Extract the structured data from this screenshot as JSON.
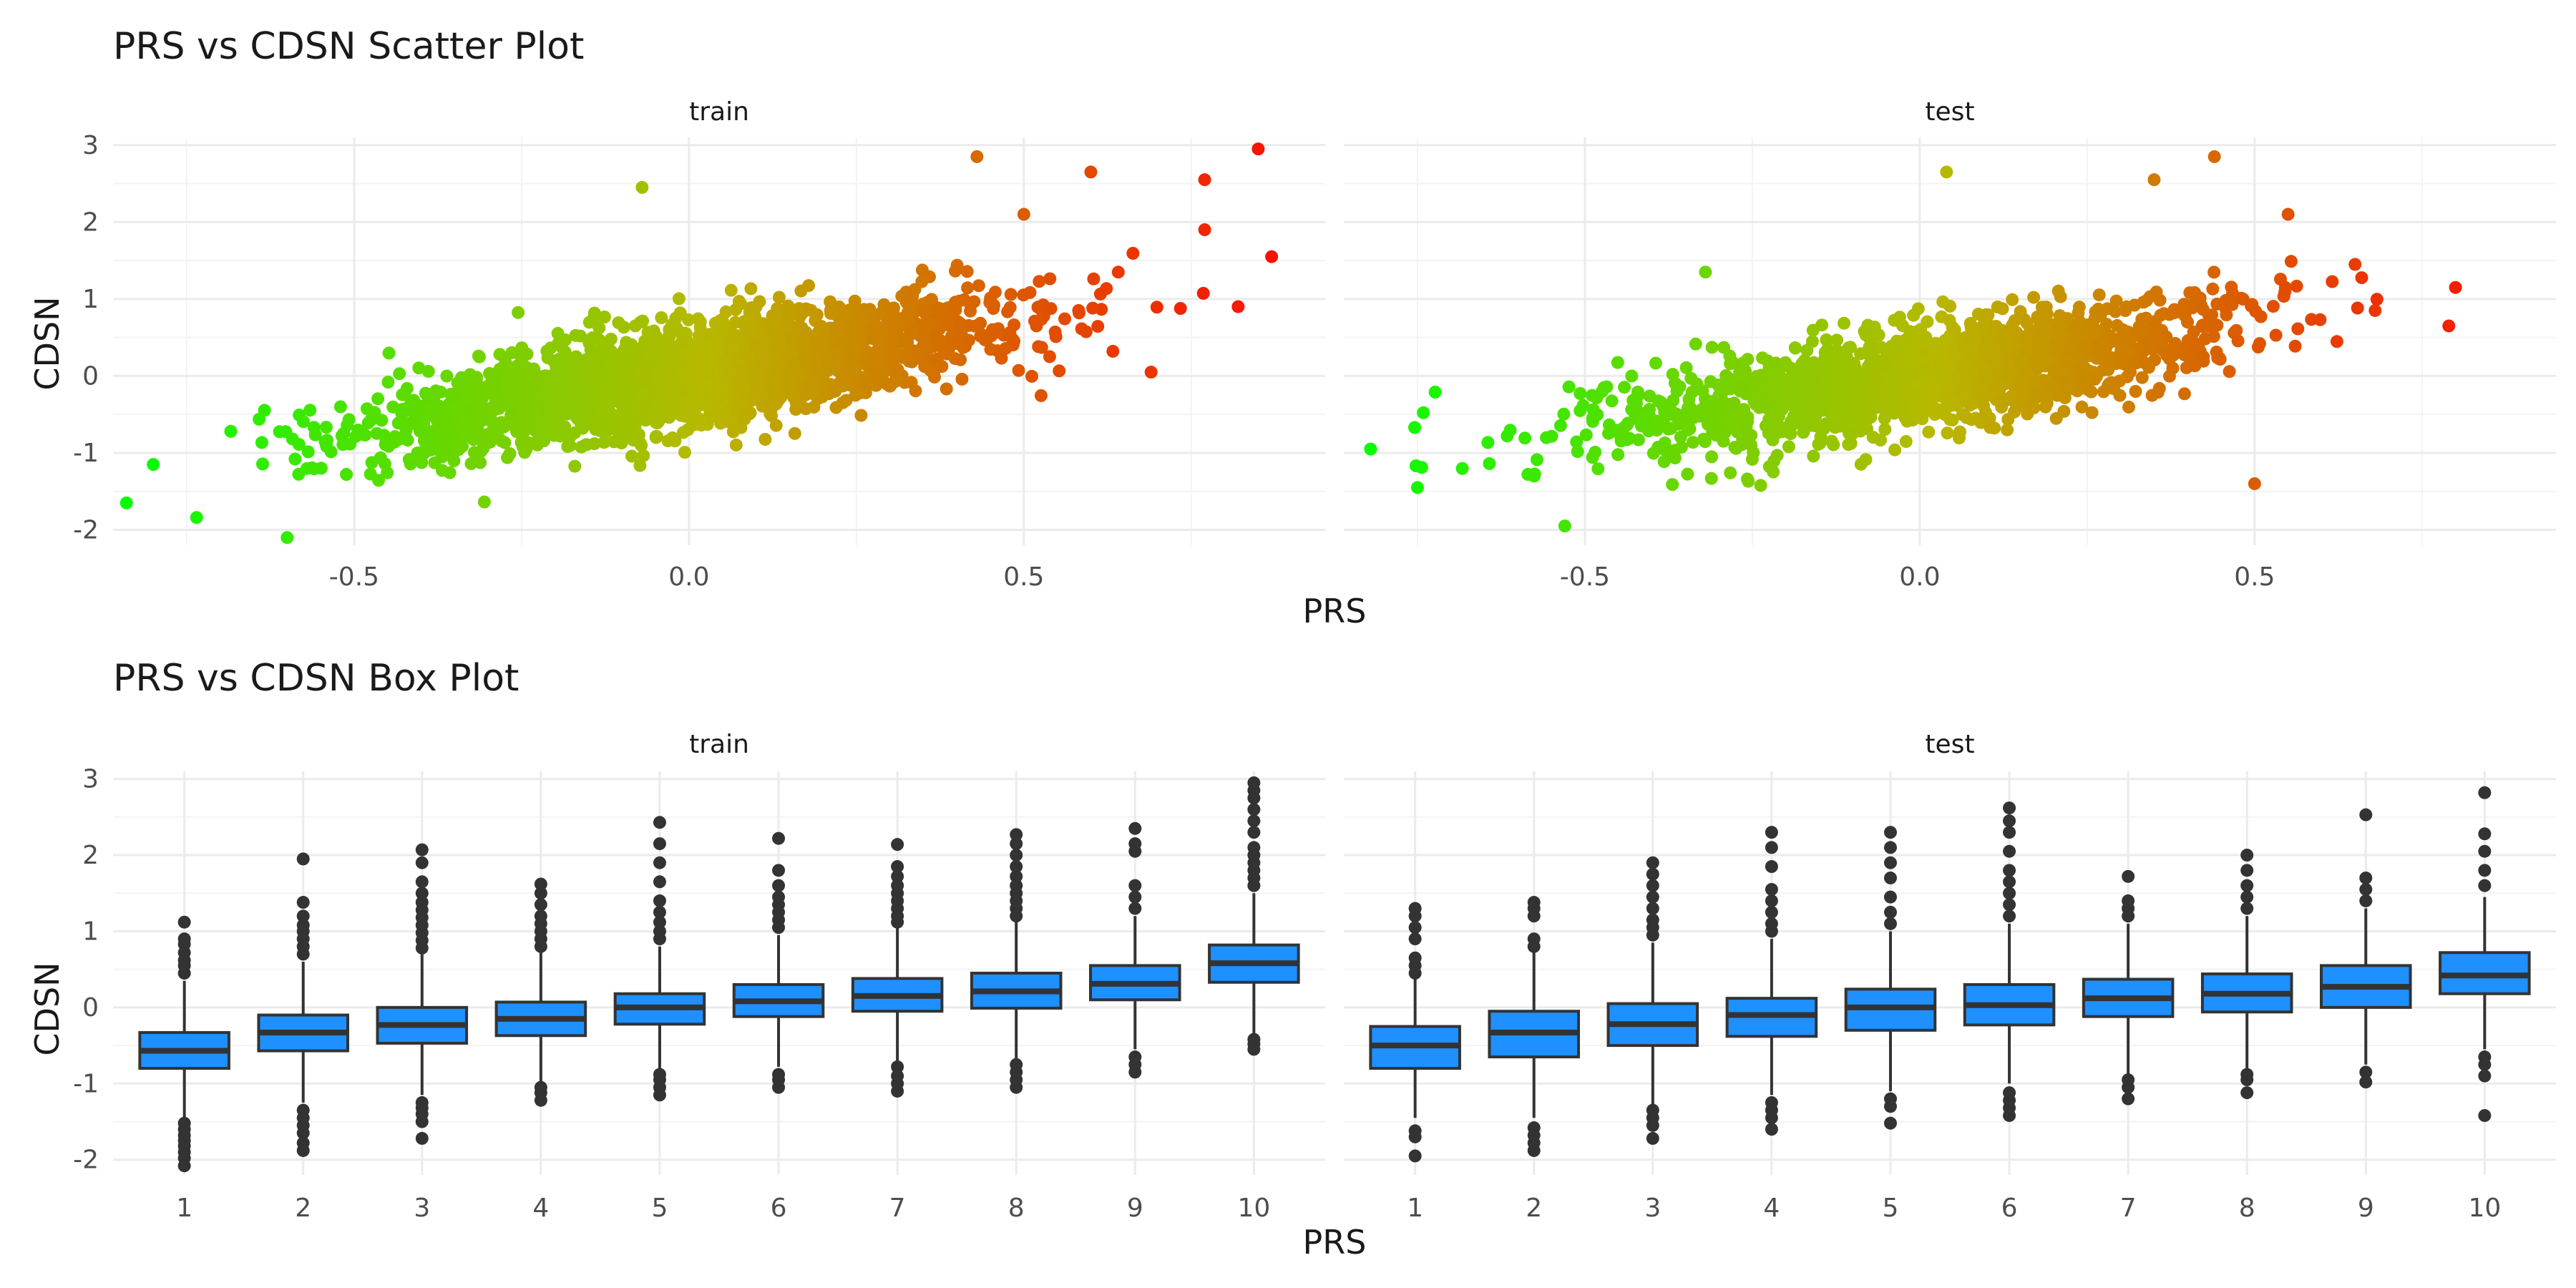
{
  "chart_data": [
    {
      "type": "scatter",
      "title": "PRS vs CDSN Scatter Plot",
      "xlabel": "PRS",
      "ylabel": "CDSN",
      "panels": [
        "train",
        "test"
      ],
      "x_ticks": [
        "-0.5",
        "0.0",
        "0.5"
      ],
      "x_tick_values": [
        -0.5,
        0.0,
        0.5
      ],
      "y_ticks": [
        "-2",
        "-1",
        "0",
        "1",
        "2",
        "3"
      ],
      "y_tick_values": [
        -2,
        -1,
        0,
        1,
        2,
        3
      ],
      "xlim": [
        -0.86,
        0.95
      ],
      "ylim": [
        -2.2,
        3.1
      ],
      "color_gradient": {
        "low": "#00ff00",
        "mid": "#b8b800",
        "high": "#ff0000"
      },
      "series": [
        {
          "name": "train",
          "trend": {
            "intercept": 0.0,
            "slope": 1.45
          },
          "x_range": [
            -0.84,
            0.87
          ],
          "n_points": 2600,
          "outliers": [
            {
              "x": -0.84,
              "y": -1.65
            },
            {
              "x": -0.8,
              "y": -1.15
            },
            {
              "x": -0.6,
              "y": -2.1
            },
            {
              "x": -0.07,
              "y": 2.45
            },
            {
              "x": 0.43,
              "y": 2.85
            },
            {
              "x": 0.5,
              "y": 2.1
            },
            {
              "x": 0.6,
              "y": 2.65
            },
            {
              "x": 0.69,
              "y": 0.05
            },
            {
              "x": 0.77,
              "y": 2.55
            },
            {
              "x": 0.77,
              "y": 1.9
            },
            {
              "x": 0.82,
              "y": 0.9
            },
            {
              "x": 0.85,
              "y": 2.95
            },
            {
              "x": 0.87,
              "y": 1.55
            }
          ]
        },
        {
          "name": "test",
          "trend": {
            "intercept": 0.0,
            "slope": 1.35
          },
          "x_range": [
            -0.82,
            0.8
          ],
          "n_points": 1700,
          "outliers": [
            {
              "x": -0.82,
              "y": -0.95
            },
            {
              "x": -0.75,
              "y": -1.45
            },
            {
              "x": -0.53,
              "y": -1.95
            },
            {
              "x": -0.32,
              "y": 1.35
            },
            {
              "x": 0.04,
              "y": 2.65
            },
            {
              "x": 0.35,
              "y": 2.55
            },
            {
              "x": 0.44,
              "y": 2.85
            },
            {
              "x": 0.5,
              "y": -1.4
            },
            {
              "x": 0.55,
              "y": 2.1
            },
            {
              "x": 0.65,
              "y": 1.45
            },
            {
              "x": 0.68,
              "y": 0.85
            },
            {
              "x": 0.79,
              "y": 0.65
            },
            {
              "x": 0.8,
              "y": 1.15
            }
          ]
        }
      ]
    },
    {
      "type": "box",
      "title": "PRS vs CDSN Box Plot",
      "xlabel": "PRS",
      "ylabel": "CDSN",
      "panels": [
        "train",
        "test"
      ],
      "categories": [
        "1",
        "2",
        "3",
        "4",
        "5",
        "6",
        "7",
        "8",
        "9",
        "10"
      ],
      "y_ticks": [
        "-2",
        "-1",
        "0",
        "1",
        "2",
        "3"
      ],
      "y_tick_values": [
        -2,
        -1,
        0,
        1,
        2,
        3
      ],
      "ylim": [
        -2.2,
        3.1
      ],
      "box_color": "#1e90ff",
      "outline_color": "#333333",
      "series": [
        {
          "name": "train",
          "boxes": [
            {
              "q1": -0.8,
              "median": -0.57,
              "q3": -0.33,
              "lower": -1.45,
              "upper": 0.35,
              "outliers": [
                -2.08,
                -1.98,
                -1.9,
                -1.82,
                -1.75,
                -1.68,
                -1.6,
                -1.52,
                0.45,
                0.55,
                0.62,
                0.72,
                0.83,
                0.9,
                1.12
              ]
            },
            {
              "q1": -0.57,
              "median": -0.33,
              "q3": -0.1,
              "lower": -1.25,
              "upper": 0.6,
              "outliers": [
                -1.88,
                -1.78,
                -1.65,
                -1.55,
                -1.45,
                -1.35,
                0.7,
                0.8,
                0.9,
                1.0,
                1.08,
                1.2,
                1.38,
                1.95
              ]
            },
            {
              "q1": -0.47,
              "median": -0.23,
              "q3": 0.0,
              "lower": -1.15,
              "upper": 0.7,
              "outliers": [
                -1.72,
                -1.5,
                -1.4,
                -1.32,
                -1.25,
                0.78,
                0.88,
                0.98,
                1.08,
                1.18,
                1.28,
                1.38,
                1.5,
                1.65,
                1.9,
                2.07
              ]
            },
            {
              "q1": -0.37,
              "median": -0.15,
              "q3": 0.07,
              "lower": -1.0,
              "upper": 0.72,
              "outliers": [
                -1.22,
                -1.12,
                -1.05,
                0.8,
                0.9,
                1.0,
                1.1,
                1.2,
                1.35,
                1.5,
                1.62
              ]
            },
            {
              "q1": -0.22,
              "median": 0.0,
              "q3": 0.18,
              "lower": -0.82,
              "upper": 0.8,
              "outliers": [
                -1.15,
                -1.05,
                -0.95,
                -0.88,
                0.9,
                1.0,
                1.12,
                1.25,
                1.4,
                1.65,
                1.9,
                2.15,
                2.43
              ]
            },
            {
              "q1": -0.12,
              "median": 0.08,
              "q3": 0.3,
              "lower": -0.78,
              "upper": 0.95,
              "outliers": [
                -1.05,
                -0.95,
                -0.88,
                1.05,
                1.15,
                1.25,
                1.35,
                1.45,
                1.6,
                1.8,
                2.22
              ]
            },
            {
              "q1": -0.05,
              "median": 0.15,
              "q3": 0.38,
              "lower": -0.7,
              "upper": 1.05,
              "outliers": [
                -1.1,
                -1.0,
                -0.9,
                -0.78,
                1.12,
                1.2,
                1.3,
                1.4,
                1.5,
                1.6,
                1.72,
                1.85,
                2.14
              ]
            },
            {
              "q1": -0.01,
              "median": 0.21,
              "q3": 0.45,
              "lower": -0.68,
              "upper": 1.12,
              "outliers": [
                -1.05,
                -0.95,
                -0.85,
                -0.75,
                1.2,
                1.3,
                1.4,
                1.5,
                1.6,
                1.72,
                1.85,
                2.0,
                2.15,
                2.27
              ]
            },
            {
              "q1": 0.1,
              "median": 0.31,
              "q3": 0.55,
              "lower": -0.55,
              "upper": 1.2,
              "outliers": [
                -0.85,
                -0.75,
                -0.65,
                1.3,
                1.45,
                1.6,
                2.05,
                2.15,
                2.35
              ]
            },
            {
              "q1": 0.33,
              "median": 0.58,
              "q3": 0.82,
              "lower": -0.35,
              "upper": 1.5,
              "outliers": [
                -0.55,
                -0.48,
                -0.42,
                1.6,
                1.7,
                1.8,
                1.9,
                2.0,
                2.1,
                2.3,
                2.45,
                2.6,
                2.75,
                2.85,
                2.95
              ]
            }
          ]
        },
        {
          "name": "test",
          "boxes": [
            {
              "q1": -0.8,
              "median": -0.5,
              "q3": -0.25,
              "lower": -1.45,
              "upper": 0.38,
              "outliers": [
                -1.95,
                -1.7,
                -1.62,
                0.45,
                0.55,
                0.65,
                0.9,
                1.05,
                1.2,
                1.3
              ]
            },
            {
              "q1": -0.65,
              "median": -0.33,
              "q3": -0.05,
              "lower": -1.45,
              "upper": 0.72,
              "outliers": [
                -1.88,
                -1.78,
                -1.68,
                -1.58,
                0.8,
                0.9,
                1.2,
                1.3,
                1.38
              ]
            },
            {
              "q1": -0.5,
              "median": -0.22,
              "q3": 0.05,
              "lower": -1.3,
              "upper": 0.85,
              "outliers": [
                -1.72,
                -1.55,
                -1.45,
                -1.35,
                0.95,
                1.05,
                1.15,
                1.3,
                1.45,
                1.6,
                1.75,
                1.9
              ]
            },
            {
              "q1": -0.38,
              "median": -0.1,
              "q3": 0.12,
              "lower": -1.15,
              "upper": 0.9,
              "outliers": [
                -1.6,
                -1.45,
                -1.35,
                -1.25,
                1.0,
                1.1,
                1.25,
                1.4,
                1.55,
                1.85,
                2.1,
                2.3
              ]
            },
            {
              "q1": -0.3,
              "median": 0.0,
              "q3": 0.24,
              "lower": -1.1,
              "upper": 1.0,
              "outliers": [
                -1.52,
                -1.3,
                -1.2,
                1.1,
                1.25,
                1.45,
                1.7,
                1.9,
                2.1,
                2.3
              ]
            },
            {
              "q1": -0.23,
              "median": 0.03,
              "q3": 0.3,
              "lower": -1.0,
              "upper": 1.1,
              "outliers": [
                -1.42,
                -1.32,
                -1.22,
                -1.12,
                1.2,
                1.35,
                1.5,
                1.65,
                1.8,
                2.05,
                2.3,
                2.45,
                2.62
              ]
            },
            {
              "q1": -0.12,
              "median": 0.12,
              "q3": 0.37,
              "lower": -0.88,
              "upper": 1.1,
              "outliers": [
                -1.2,
                -1.05,
                -0.95,
                1.2,
                1.3,
                1.4,
                1.72
              ]
            },
            {
              "q1": -0.06,
              "median": 0.18,
              "q3": 0.44,
              "lower": -0.8,
              "upper": 1.2,
              "outliers": [
                -1.12,
                -0.95,
                -0.88,
                1.3,
                1.45,
                1.6,
                1.8,
                2.0
              ]
            },
            {
              "q1": 0.0,
              "median": 0.27,
              "q3": 0.55,
              "lower": -0.75,
              "upper": 1.3,
              "outliers": [
                -0.98,
                -0.85,
                1.4,
                1.55,
                1.7,
                2.53
              ]
            },
            {
              "q1": 0.18,
              "median": 0.42,
              "q3": 0.72,
              "lower": -0.55,
              "upper": 1.45,
              "outliers": [
                -1.42,
                -0.9,
                -0.75,
                -0.65,
                1.6,
                1.8,
                2.05,
                2.28,
                2.82
              ]
            }
          ]
        }
      ]
    }
  ]
}
